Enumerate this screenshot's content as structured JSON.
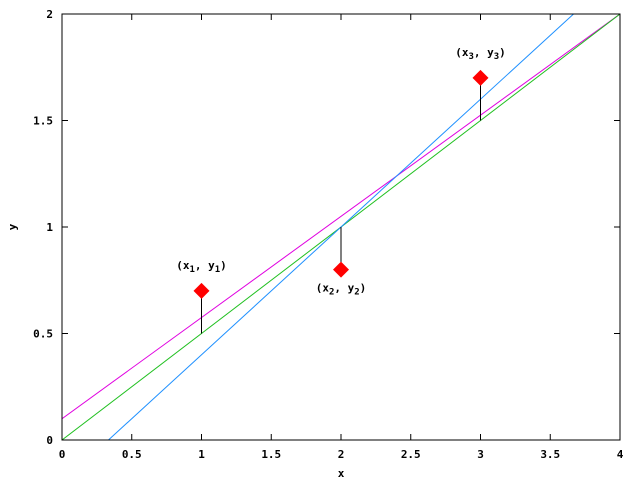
{
  "chart_data": {
    "type": "line",
    "xlabel": "x",
    "ylabel": "y",
    "xlim": [
      0,
      4
    ],
    "ylim": [
      0,
      2
    ],
    "grid": false,
    "x_ticks": [
      {
        "value": 0,
        "label": "0"
      },
      {
        "value": 0.5,
        "label": "0.5"
      },
      {
        "value": 1,
        "label": "1"
      },
      {
        "value": 1.5,
        "label": "1.5"
      },
      {
        "value": 2,
        "label": "2"
      },
      {
        "value": 2.5,
        "label": "2.5"
      },
      {
        "value": 3,
        "label": "3"
      },
      {
        "value": 3.5,
        "label": "3.5"
      },
      {
        "value": 4,
        "label": "4"
      }
    ],
    "y_ticks": [
      {
        "value": 0,
        "label": "0"
      },
      {
        "value": 0.5,
        "label": "0.5"
      },
      {
        "value": 1,
        "label": "1"
      },
      {
        "value": 1.5,
        "label": "1.5"
      },
      {
        "value": 2,
        "label": "2"
      }
    ],
    "series": [
      {
        "color": "#e000e0",
        "x": [
          0,
          4
        ],
        "y": [
          0.1,
          2.0
        ]
      },
      {
        "color": "#20c020",
        "x": [
          0,
          4
        ],
        "y": [
          0.0,
          2.0
        ]
      },
      {
        "color": "#1e90ff",
        "x": [
          0.333,
          3.667
        ],
        "y": [
          0.0,
          2.0
        ]
      }
    ],
    "points": {
      "color": "#ff0000",
      "marker": "diamond",
      "x": [
        1,
        2,
        3
      ],
      "y": [
        0.7,
        0.8,
        1.7
      ]
    },
    "residuals": {
      "color": "#000000",
      "x": [
        1,
        2,
        3
      ],
      "y_from": [
        0.5,
        1.0,
        1.5
      ],
      "y_to": [
        0.7,
        0.8,
        1.7
      ]
    },
    "annotations": [
      {
        "x": 1,
        "y": 0.7,
        "base": "(x",
        "sub1": "1",
        "mid": ", y",
        "sub2": "1",
        "end": ")",
        "position": "above"
      },
      {
        "x": 2,
        "y": 0.8,
        "base": "(x",
        "sub1": "2",
        "mid": ", y",
        "sub2": "2",
        "end": ")",
        "position": "below"
      },
      {
        "x": 3,
        "y": 1.7,
        "base": "(x",
        "sub1": "3",
        "mid": ", y",
        "sub2": "3",
        "end": ")",
        "position": "above"
      }
    ]
  }
}
